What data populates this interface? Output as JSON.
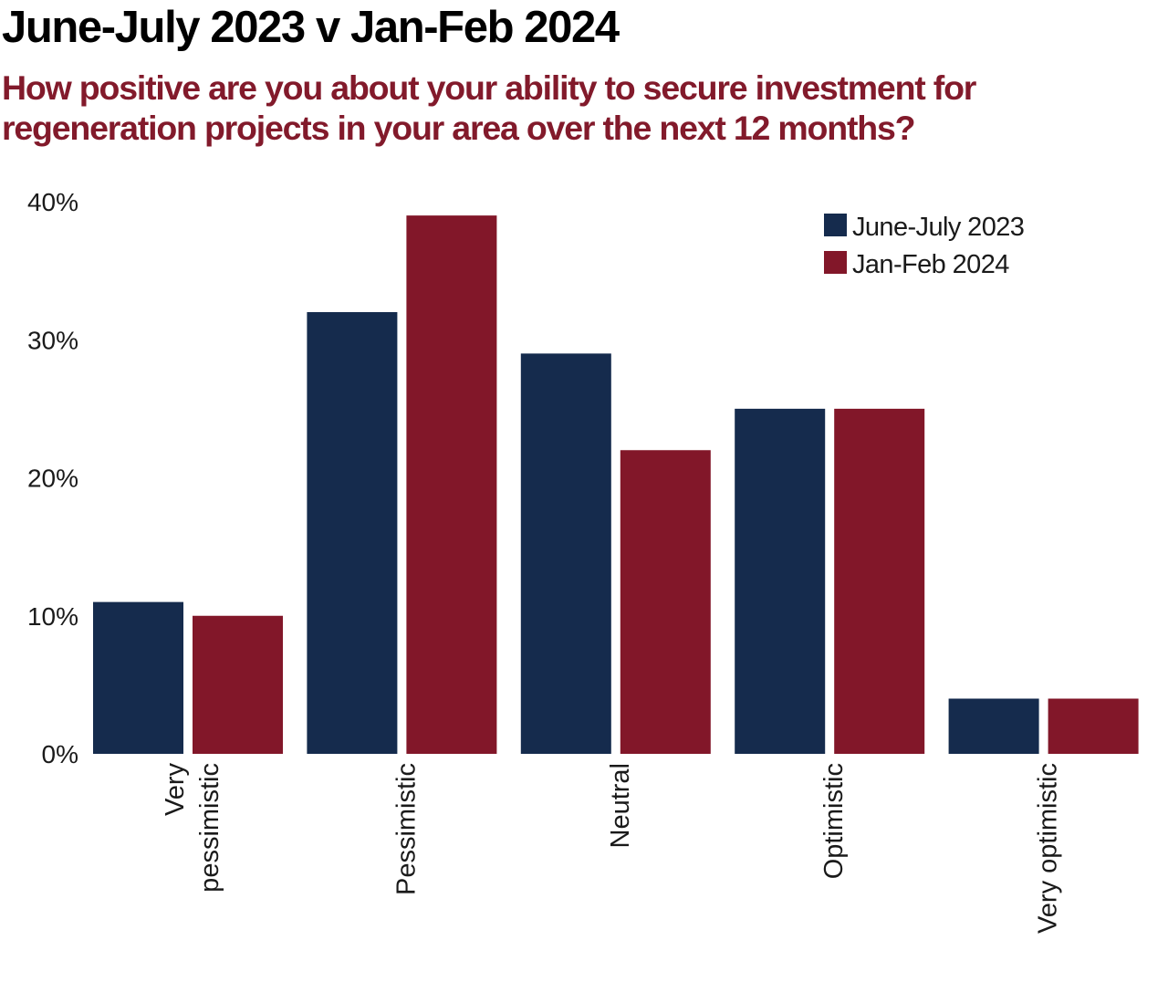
{
  "chart_data": {
    "type": "bar",
    "title": "June-July 2023 v Jan-Feb 2024",
    "subtitle_lines": [
      "How positive are you about your ability to secure investment for",
      "regeneration projects in your area over the next 12 months?"
    ],
    "categories": [
      [
        "Very",
        "pessimistic"
      ],
      [
        "Pessimistic"
      ],
      [
        "Neutral"
      ],
      [
        "Optimistic"
      ],
      [
        "Very optimistic"
      ]
    ],
    "series": [
      {
        "name": "June-July 2023",
        "color": "#152b4d",
        "values": [
          11,
          32,
          29,
          25,
          4
        ]
      },
      {
        "name": "Jan-Feb 2024",
        "color": "#821729",
        "values": [
          10,
          39,
          22,
          25,
          4
        ]
      }
    ],
    "y_ticks": [
      0,
      10,
      20,
      30,
      40
    ],
    "y_tick_suffix": "%",
    "ylim": [
      0,
      40
    ],
    "xlabel": "",
    "ylabel": "",
    "grid": false,
    "legend": {
      "placement": "top-right"
    },
    "category_label_orientation": "vertical"
  }
}
